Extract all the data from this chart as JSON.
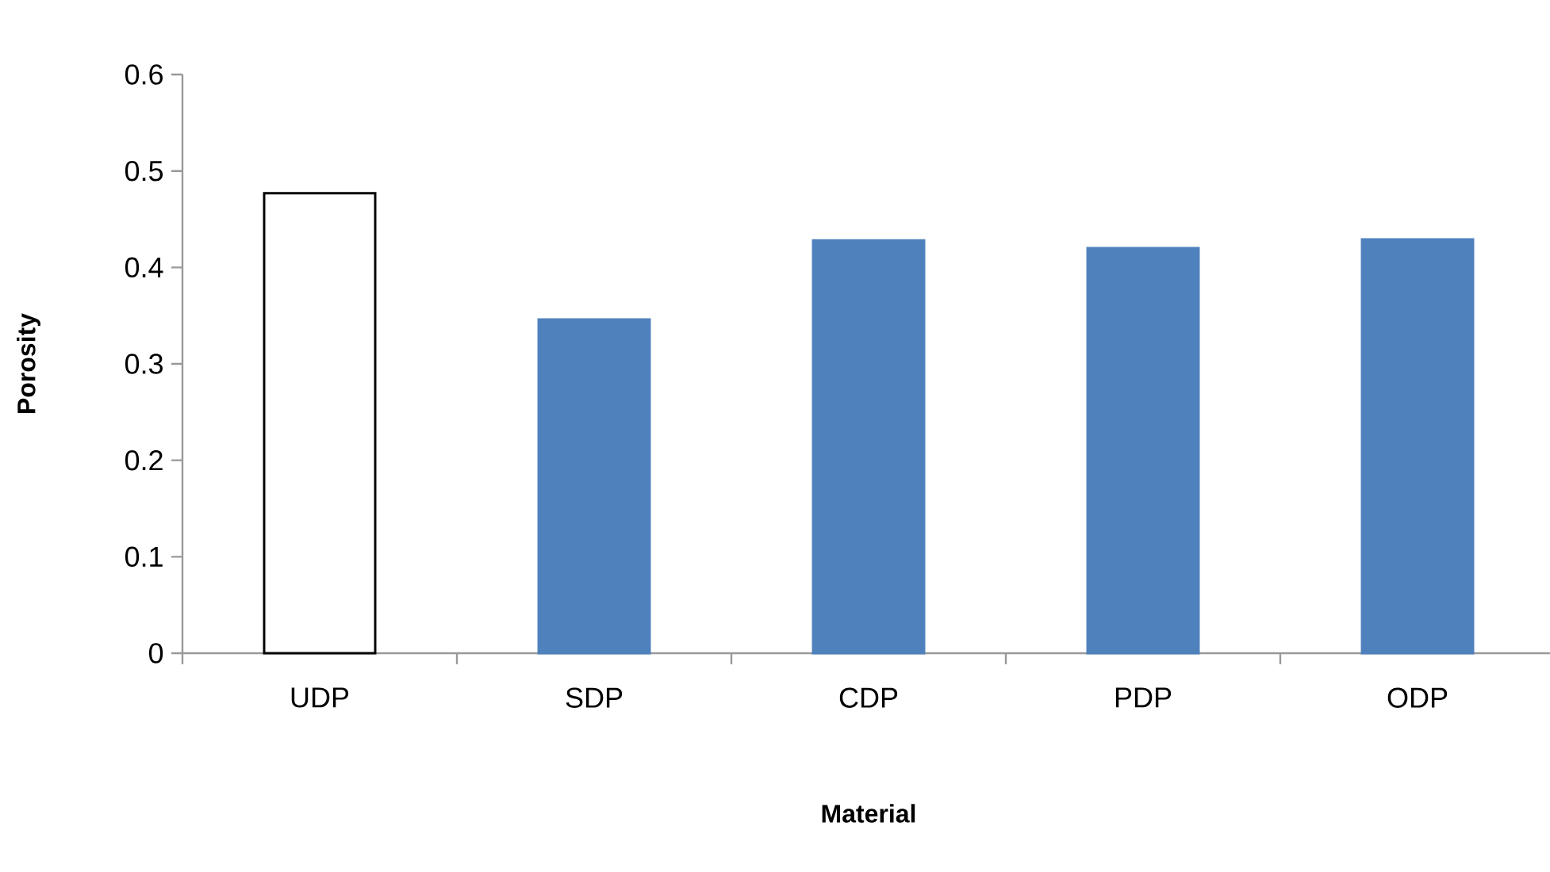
{
  "chart_data": {
    "type": "bar",
    "xlabel": "Material",
    "ylabel": "Porosity",
    "categories": [
      "UDP",
      "SDP",
      "CDP",
      "PDP",
      "ODP"
    ],
    "values": [
      0.477,
      0.346,
      0.428,
      0.42,
      0.429
    ],
    "colors": [
      "#ffffff",
      "#4f81bd",
      "#4f81bd",
      "#4f81bd",
      "#4f81bd"
    ],
    "ylim": [
      0,
      0.6
    ],
    "yticks": [
      0,
      0.1,
      0.2,
      0.3,
      0.4,
      0.5,
      0.6
    ],
    "grid": false
  }
}
